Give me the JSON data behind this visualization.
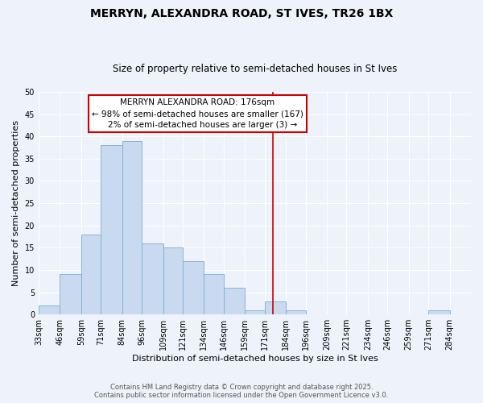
{
  "title": "MERRYN, ALEXANDRA ROAD, ST IVES, TR26 1BX",
  "subtitle": "Size of property relative to semi-detached houses in St Ives",
  "xlabel": "Distribution of semi-detached houses by size in St Ives",
  "ylabel": "Number of semi-detached properties",
  "bin_labels": [
    "33sqm",
    "46sqm",
    "59sqm",
    "71sqm",
    "84sqm",
    "96sqm",
    "109sqm",
    "121sqm",
    "134sqm",
    "146sqm",
    "159sqm",
    "171sqm",
    "184sqm",
    "196sqm",
    "209sqm",
    "221sqm",
    "234sqm",
    "246sqm",
    "259sqm",
    "271sqm",
    "284sqm"
  ],
  "bin_edges": [
    33,
    46,
    59,
    71,
    84,
    96,
    109,
    121,
    134,
    146,
    159,
    171,
    184,
    196,
    209,
    221,
    234,
    246,
    259,
    271,
    284
  ],
  "bin_counts": [
    2,
    9,
    18,
    38,
    39,
    16,
    15,
    12,
    9,
    6,
    1,
    3,
    1,
    0,
    0,
    0,
    0,
    0,
    0,
    1
  ],
  "bar_color": "#c8d9f0",
  "bar_edge_color": "#7baed4",
  "vline_x": 176,
  "vline_color": "#cc0000",
  "annotation_title": "MERRYN ALEXANDRA ROAD: 176sqm",
  "annotation_line1": "← 98% of semi-detached houses are smaller (167)",
  "annotation_line2": "    2% of semi-detached houses are larger (3) →",
  "annotation_box_edgecolor": "#cc0000",
  "ylim": [
    0,
    50
  ],
  "yticks": [
    0,
    5,
    10,
    15,
    20,
    25,
    30,
    35,
    40,
    45,
    50
  ],
  "footer_line1": "Contains HM Land Registry data © Crown copyright and database right 2025.",
  "footer_line2": "Contains public sector information licensed under the Open Government Licence v3.0.",
  "bg_color": "#eef2fa",
  "grid_color": "#ffffff",
  "title_fontsize": 10,
  "subtitle_fontsize": 8.5,
  "axis_label_fontsize": 8,
  "tick_fontsize": 7,
  "annotation_fontsize": 7.5
}
